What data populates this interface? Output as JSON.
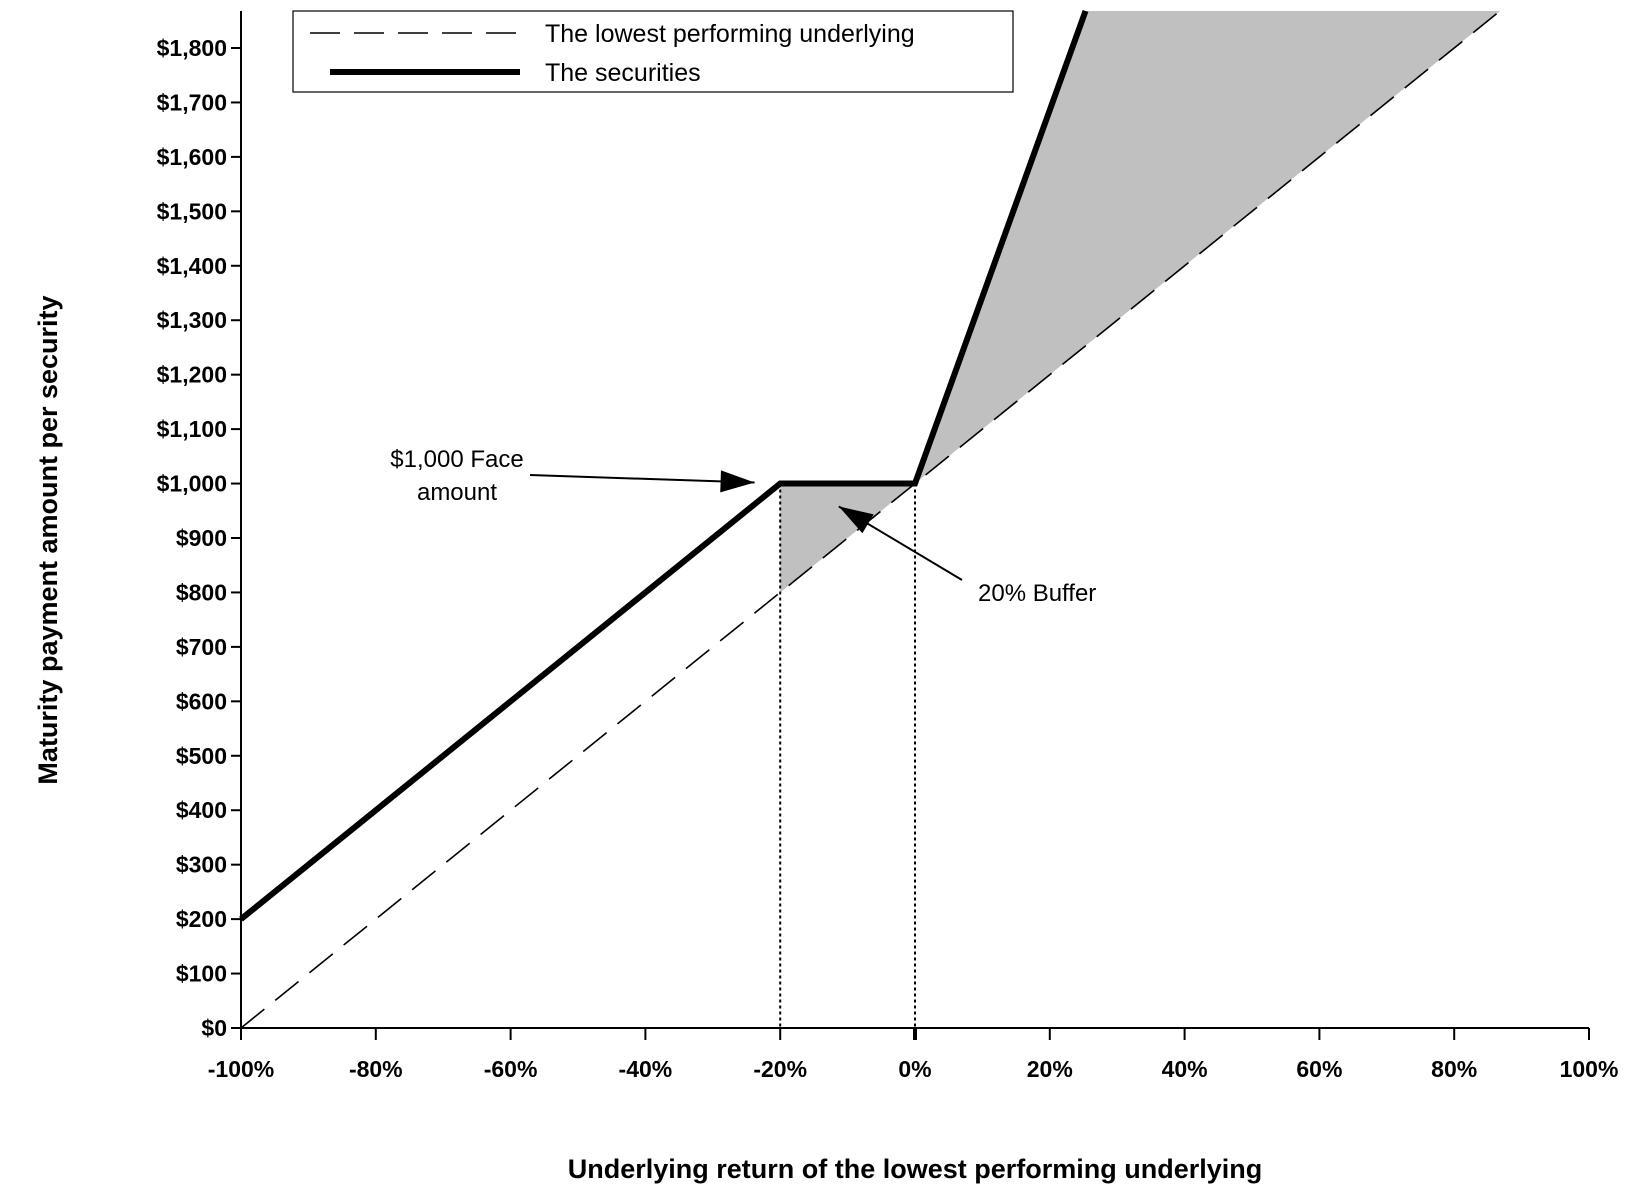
{
  "chart_data": {
    "type": "line",
    "title": "",
    "xlabel": "Underlying return of the lowest performing underlying",
    "ylabel": "Maturity payment amount per security",
    "xlim": [
      -100,
      100
    ],
    "ylim": [
      0,
      1868
    ],
    "x_ticks": [
      -100,
      -80,
      -60,
      -40,
      -20,
      0,
      20,
      40,
      60,
      80,
      100
    ],
    "x_tick_labels": [
      "-100%",
      "-80%",
      "-60%",
      "-40%",
      "-20%",
      "0%",
      "20%",
      "40%",
      "60%",
      "80%",
      "100%"
    ],
    "y_ticks": [
      0,
      100,
      200,
      300,
      400,
      500,
      600,
      700,
      800,
      900,
      1000,
      1100,
      1200,
      1300,
      1400,
      1500,
      1600,
      1700,
      1800
    ],
    "y_tick_labels": [
      "$0",
      "$100",
      "$200",
      "$300",
      "$400",
      "$500",
      "$600",
      "$700",
      "$800",
      "$900",
      "$1,000",
      "$1,100",
      "$1,200",
      "$1,300",
      "$1,400",
      "$1,500",
      "$1,600",
      "$1,700",
      "$1,800"
    ],
    "grid": false,
    "legend_position": "top-left",
    "series": [
      {
        "name": "The lowest performing underlying",
        "style": "dashed",
        "points": [
          [
            -100,
            0
          ],
          [
            86.8,
            1868
          ]
        ]
      },
      {
        "name": "The securities",
        "style": "solid-thick",
        "points": [
          [
            -100,
            200
          ],
          [
            -20,
            1000
          ],
          [
            0,
            1000
          ],
          [
            25.3,
            1868
          ]
        ]
      }
    ],
    "shaded_regions_color": "#c0c0c0",
    "reference_lines_x": [
      -20,
      0
    ],
    "annotations": [
      {
        "line1": "$1,000 Face",
        "line2": "amount"
      },
      {
        "text": "20% Buffer"
      }
    ]
  }
}
